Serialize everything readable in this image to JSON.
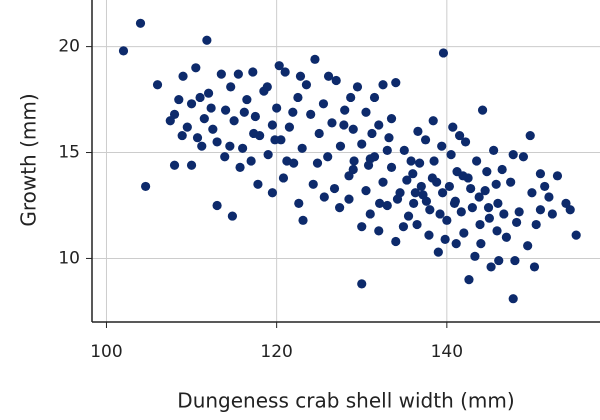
{
  "chart_data": {
    "type": "scatter",
    "x_label": "Dungeness crab shell width (mm)",
    "y_label": "Growth (mm)",
    "color": "#0d2a6b",
    "grid": true,
    "xlim": [
      98.3,
      158
    ],
    "xticks": [
      100,
      120,
      140
    ],
    "ylim": [
      7,
      22.2
    ],
    "yticks": [
      10,
      15,
      20
    ],
    "x": [
      102,
      104,
      111.8,
      139.6,
      104.6,
      130,
      147.8,
      113,
      114.8,
      155.2,
      154.5,
      151,
      110,
      108,
      106,
      107.5,
      108,
      108.5,
      109,
      109.5,
      110,
      110.5,
      111,
      111.5,
      112,
      112.5,
      113,
      113.5,
      114,
      114.5,
      115,
      115.5,
      116,
      116.5,
      117,
      117.5,
      118,
      118.5,
      119,
      119.5,
      120,
      120.5,
      121,
      121.5,
      122,
      122.5,
      123,
      123.5,
      124,
      124.5,
      125,
      125.5,
      126,
      126.5,
      127,
      127.5,
      128,
      128.5,
      129,
      129.5,
      130,
      130.5,
      131,
      131.5,
      132,
      132.5,
      133,
      133.5,
      134,
      120.8,
      119.5,
      122.6,
      123.1,
      117.8,
      124.3,
      125.6,
      126.8,
      127.4,
      121.9,
      118.9,
      116.2,
      113.9,
      115.7,
      117.3,
      119.8,
      121.2,
      124.8,
      127.9,
      129.1,
      110.7,
      112.3,
      114.6,
      117.2,
      120.3,
      122.8,
      126.1,
      128.7,
      131.2,
      111.2,
      108.9,
      128.5,
      129,
      130,
      130.5,
      131,
      131.5,
      132,
      132.5,
      133,
      133.5,
      134,
      134.5,
      135,
      135.5,
      136,
      136.5,
      137,
      137.5,
      138,
      138.5,
      139,
      139.5,
      140,
      140.5,
      141,
      141.5,
      142,
      142.5,
      143,
      143.5,
      144,
      144.5,
      145,
      145.5,
      146,
      146.5,
      147,
      147.5,
      148,
      148.5,
      149,
      149.5,
      150,
      150.5,
      151,
      152,
      153,
      154,
      134.2,
      135.3,
      136.1,
      136.8,
      137.2,
      138.3,
      139.2,
      140.3,
      141.2,
      141.7,
      142.8,
      143.8,
      144.7,
      145.8,
      146.7,
      137.9,
      139.8,
      141.1,
      143.3,
      145.2,
      146.1,
      142.6,
      138.4,
      140.7,
      144.2,
      136.6,
      133.2,
      135.8,
      139.4,
      142.2,
      147.8,
      149.8,
      151.5,
      132.1,
      134.9,
      137.6,
      140.9,
      143.9,
      145.9,
      148.2,
      150.3,
      152.4,
      130.8,
      136.3,
      138.8,
      141.9,
      144.9
    ],
    "values": [
      19.8,
      21.1,
      20.3,
      19.7,
      13.4,
      8.8,
      8.1,
      12.5,
      12,
      11.1,
      12.3,
      12.3,
      14.4,
      14.4,
      18.2,
      16.5,
      16.8,
      17.5,
      18.6,
      16.2,
      17.3,
      19,
      17.6,
      16.6,
      17.8,
      16.1,
      15.5,
      18.7,
      17,
      15.3,
      16.5,
      18.7,
      15.2,
      17.5,
      14.6,
      16.7,
      15.8,
      17.9,
      14.9,
      16.3,
      17.1,
      15.6,
      18.8,
      16.2,
      14.5,
      17.6,
      15.2,
      18.2,
      16.8,
      19.4,
      15.9,
      17.3,
      14.8,
      16.4,
      18.4,
      15.3,
      17,
      13.9,
      16.1,
      18.1,
      15.4,
      16.9,
      14.7,
      17.6,
      16.3,
      18.2,
      15.1,
      16.6,
      18.3,
      13.8,
      13.1,
      12.6,
      11.8,
      13.5,
      13.5,
      12.9,
      13.3,
      12.4,
      16.9,
      18.1,
      16.9,
      14.8,
      14.3,
      15.9,
      15.6,
      14.6,
      14.5,
      16.3,
      14.6,
      15.7,
      17.1,
      18.1,
      18.8,
      19.1,
      18.6,
      18.6,
      17.6,
      15.9,
      15.3,
      15.8,
      12.8,
      14.2,
      11.5,
      13.2,
      12.1,
      14.8,
      11.3,
      13.6,
      12.5,
      14.3,
      10.8,
      13.1,
      15.1,
      12,
      14,
      11.6,
      13.4,
      15.6,
      12.3,
      14.6,
      10.3,
      13.1,
      11.8,
      14.9,
      12.7,
      15.8,
      11.2,
      13.8,
      12.4,
      14.6,
      10.7,
      13.2,
      11.9,
      15.1,
      12.6,
      14.2,
      11,
      13.6,
      9.9,
      12.2,
      14.8,
      10.6,
      13.1,
      11.6,
      14,
      12.9,
      13.9,
      12.6,
      12.8,
      13.7,
      12.6,
      14.5,
      13,
      13.8,
      12.1,
      13.4,
      14.1,
      12.2,
      13.3,
      12.9,
      14.1,
      13.5,
      12.1,
      11.1,
      10.9,
      10.7,
      10.1,
      9.6,
      9.9,
      9,
      16.5,
      16.2,
      17,
      16,
      15.7,
      14.6,
      15.3,
      15.5,
      14.9,
      15.8,
      13.4,
      12.6,
      11.5,
      12.7,
      12.6,
      11.6,
      11.3,
      11.7,
      9.6,
      12.1,
      14.4,
      13.1,
      13.6,
      13.9,
      12.4
    ]
  }
}
